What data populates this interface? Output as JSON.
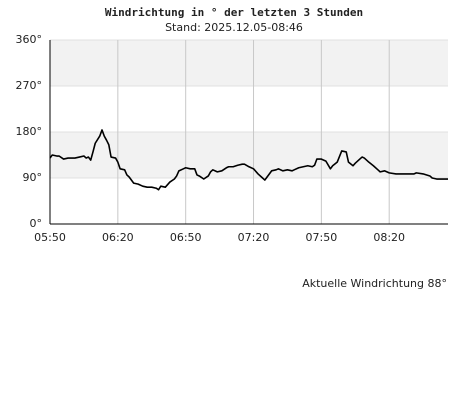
{
  "chart_data": {
    "type": "line",
    "title": "Windrichtung in ° der letzten 3 Stunden",
    "subtitle": "Stand: 2025.12.05-08:46",
    "annotation": "Aktuelle Windrichtung 88°",
    "color": "#000000",
    "grid": true,
    "xlim": [
      "05:50",
      "08:46"
    ],
    "xticks": [
      "05:50",
      "06:20",
      "06:50",
      "07:20",
      "07:50",
      "08:20"
    ],
    "ylim": [
      0,
      360
    ],
    "yticks": [
      {
        "value": 0,
        "label": "0°"
      },
      {
        "value": 90,
        "label": "90°"
      },
      {
        "value": 180,
        "label": "180°"
      },
      {
        "value": 270,
        "label": "270°"
      },
      {
        "value": 360,
        "label": "360°"
      }
    ],
    "x": [
      "05:50",
      "05:51",
      "05:53",
      "05:54",
      "05:56",
      "05:58",
      "06:00",
      "06:01",
      "06:03",
      "06:05",
      "06:06",
      "06:07",
      "06:08",
      "06:09",
      "06:10",
      "06:12",
      "06:13",
      "06:14",
      "06:15",
      "06:16",
      "06:17",
      "06:19",
      "06:20",
      "06:21",
      "06:23",
      "06:24",
      "06:25",
      "06:27",
      "06:29",
      "06:31",
      "06:33",
      "06:35",
      "06:37",
      "06:38",
      "06:39",
      "06:41",
      "06:43",
      "06:45",
      "06:46",
      "06:47",
      "06:49",
      "06:50",
      "06:52",
      "06:54",
      "06:55",
      "06:56",
      "06:58",
      "07:00",
      "07:01",
      "07:02",
      "07:04",
      "07:06",
      "07:08",
      "07:09",
      "07:11",
      "07:13",
      "07:15",
      "07:16",
      "07:18",
      "07:20",
      "07:22",
      "07:24",
      "07:25",
      "07:26",
      "07:28",
      "07:30",
      "07:31",
      "07:33",
      "07:35",
      "07:37",
      "07:38",
      "07:40",
      "07:42",
      "07:44",
      "07:46",
      "07:47",
      "07:48",
      "07:50",
      "07:52",
      "07:54",
      "07:55",
      "07:57",
      "07:59",
      "08:01",
      "08:02",
      "08:04",
      "08:05",
      "08:07",
      "08:08",
      "08:09",
      "08:11",
      "08:13",
      "08:15",
      "08:16",
      "08:18",
      "08:20",
      "08:23",
      "08:25",
      "08:28",
      "08:31",
      "08:32",
      "08:35",
      "08:38",
      "08:39",
      "08:41",
      "08:44",
      "08:46"
    ],
    "values": [
      129,
      135,
      133,
      133,
      127,
      129,
      129,
      129,
      131,
      133,
      129,
      131,
      125,
      141,
      158,
      172,
      184,
      172,
      164,
      155,
      131,
      129,
      121,
      108,
      106,
      96,
      92,
      80,
      78,
      74,
      72,
      72,
      70,
      67,
      74,
      72,
      82,
      88,
      94,
      104,
      108,
      110,
      108,
      108,
      96,
      94,
      88,
      94,
      102,
      106,
      102,
      104,
      110,
      112,
      112,
      115,
      117,
      117,
      112,
      108,
      98,
      90,
      86,
      92,
      104,
      106,
      108,
      104,
      106,
      104,
      106,
      110,
      112,
      114,
      112,
      115,
      127,
      127,
      123,
      108,
      114,
      121,
      143,
      141,
      121,
      114,
      119,
      127,
      131,
      129,
      121,
      114,
      106,
      102,
      104,
      100,
      98,
      98,
      98,
      98,
      100,
      98,
      94,
      90,
      88,
      88,
      88
    ]
  }
}
